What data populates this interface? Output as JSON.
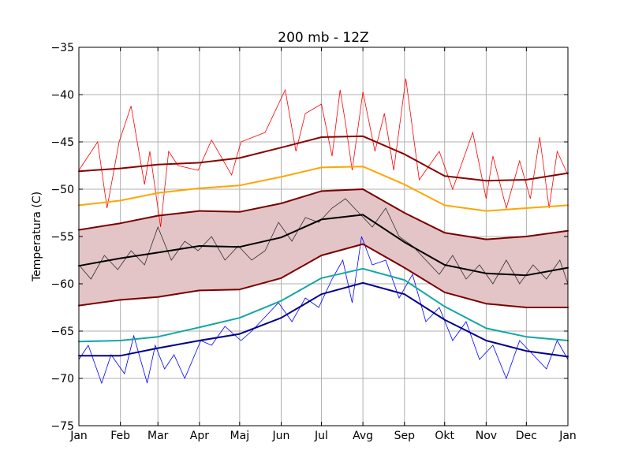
{
  "chart_data": {
    "type": "line",
    "title": "200 mb - 12Z",
    "xlabel": "",
    "ylabel": "Temperatura (C)",
    "ylim": [
      -75,
      -35
    ],
    "yticks": [
      -35,
      -40,
      -45,
      -50,
      -55,
      -60,
      -65,
      -70,
      -75
    ],
    "ytick_labels": [
      "−35",
      "−40",
      "−45",
      "−50",
      "−55",
      "−60",
      "−65",
      "−70",
      "−75"
    ],
    "xticks": [
      "Jan",
      "Feb",
      "Mar",
      "Apr",
      "Maj",
      "Jun",
      "Jul",
      "Avg",
      "Sep",
      "Okt",
      "Nov",
      "Dec",
      "Jan"
    ],
    "x_day_of_year": [
      1,
      32,
      60,
      91,
      121,
      152,
      182,
      213,
      244,
      274,
      305,
      335,
      366
    ],
    "grid": true,
    "colors": {
      "band_fill": "#e3c4c7",
      "band_edge": "#7a0000",
      "record_max_line": "#8b0000",
      "p90_line": "#ffa500",
      "mean_line": "#000000",
      "p10_line": "#13a6a6",
      "record_min_line": "#00008b",
      "daily_max": "#ff0000",
      "daily_mid": "#303030",
      "daily_min": "#0000ff"
    },
    "series": [
      {
        "role": "max_smooth",
        "style": "thick",
        "x": [
          1,
          32,
          60,
          91,
          121,
          152,
          182,
          213,
          244,
          274,
          305,
          335,
          366
        ],
        "values": [
          -48.1,
          -47.8,
          -47.4,
          -47.2,
          -46.7,
          -45.6,
          -44.5,
          -44.4,
          -46.3,
          -48.6,
          -49.1,
          -49.0,
          -48.3
        ]
      },
      {
        "role": "p90_smooth",
        "style": "thick",
        "x": [
          1,
          32,
          60,
          91,
          121,
          152,
          182,
          213,
          244,
          274,
          305,
          335,
          366
        ],
        "values": [
          -51.7,
          -51.2,
          -50.4,
          -49.9,
          -49.6,
          -48.7,
          -47.7,
          -47.6,
          -49.5,
          -51.7,
          -52.3,
          -52.0,
          -51.7
        ]
      },
      {
        "role": "band_upper",
        "style": "thick",
        "x": [
          1,
          32,
          60,
          91,
          121,
          152,
          182,
          213,
          244,
          274,
          305,
          335,
          366
        ],
        "values": [
          -54.3,
          -53.6,
          -52.8,
          -52.3,
          -52.4,
          -51.5,
          -50.2,
          -50.0,
          -52.5,
          -54.6,
          -55.3,
          -55.0,
          -54.4
        ]
      },
      {
        "role": "mean_smooth",
        "style": "thick",
        "x": [
          1,
          32,
          60,
          91,
          121,
          152,
          182,
          213,
          244,
          274,
          305,
          335,
          366
        ],
        "values": [
          -58.1,
          -57.3,
          -56.7,
          -56.0,
          -56.1,
          -55.1,
          -53.2,
          -52.7,
          -55.6,
          -58.0,
          -58.9,
          -59.1,
          -58.3
        ]
      },
      {
        "role": "band_lower",
        "style": "thick",
        "x": [
          1,
          32,
          60,
          91,
          121,
          152,
          182,
          213,
          244,
          274,
          305,
          335,
          366
        ],
        "values": [
          -62.3,
          -61.7,
          -61.4,
          -60.7,
          -60.6,
          -59.4,
          -57.0,
          -55.8,
          -58.3,
          -60.9,
          -62.1,
          -62.5,
          -62.5
        ]
      },
      {
        "role": "p10_smooth",
        "style": "thick",
        "x": [
          1,
          32,
          60,
          91,
          121,
          152,
          182,
          213,
          244,
          274,
          305,
          335,
          366
        ],
        "values": [
          -66.1,
          -66.0,
          -65.6,
          -64.6,
          -63.6,
          -61.8,
          -59.4,
          -58.4,
          -59.6,
          -62.4,
          -64.7,
          -65.6,
          -66.0
        ]
      },
      {
        "role": "min_smooth",
        "style": "thick",
        "x": [
          1,
          32,
          60,
          91,
          121,
          152,
          182,
          213,
          244,
          274,
          305,
          335,
          366
        ],
        "values": [
          -67.6,
          -67.6,
          -66.8,
          -66.0,
          -65.3,
          -63.6,
          -61.1,
          -59.9,
          -61.1,
          -63.8,
          -66.0,
          -67.1,
          -67.7
        ]
      },
      {
        "role": "daily_max",
        "style": "thin",
        "x": [
          1,
          15,
          22,
          31,
          40,
          50,
          54,
          62,
          68,
          75,
          90,
          100,
          115,
          122,
          140,
          155,
          163,
          170,
          182,
          190,
          196,
          200,
          205,
          213,
          222,
          229,
          236,
          245,
          255,
          270,
          280,
          295,
          305,
          310,
          320,
          330,
          338,
          345,
          352,
          358,
          366
        ],
        "values": [
          -48.0,
          -45.0,
          -52.0,
          -45.0,
          -41.2,
          -49.5,
          -46.0,
          -54.0,
          -46.0,
          -47.5,
          -48.0,
          -44.8,
          -48.5,
          -45.0,
          -44.0,
          -39.5,
          -46.0,
          -42.0,
          -41.0,
          -46.5,
          -39.5,
          -43.0,
          -48.0,
          -39.7,
          -46.0,
          -42.0,
          -48.0,
          -38.3,
          -49.0,
          -46.0,
          -50.0,
          -44.0,
          -51.0,
          -46.5,
          -52.0,
          -47.0,
          -51.0,
          -44.5,
          -52.0,
          -46.0,
          -48.5
        ]
      },
      {
        "role": "daily_mid",
        "style": "thin",
        "x": [
          1,
          10,
          20,
          30,
          40,
          50,
          60,
          70,
          80,
          90,
          100,
          110,
          120,
          130,
          140,
          150,
          160,
          170,
          180,
          190,
          200,
          210,
          220,
          230,
          240,
          250,
          260,
          270,
          280,
          290,
          300,
          310,
          320,
          330,
          340,
          350,
          360,
          366
        ],
        "values": [
          -58.0,
          -59.5,
          -57.0,
          -58.5,
          -56.5,
          -58.0,
          -54.0,
          -57.5,
          -55.5,
          -56.5,
          -55.0,
          -57.5,
          -56.0,
          -57.5,
          -56.5,
          -53.5,
          -55.5,
          -53.0,
          -53.5,
          -52.0,
          -51.0,
          -52.5,
          -54.0,
          -52.0,
          -55.0,
          -56.0,
          -57.5,
          -59.0,
          -57.0,
          -59.5,
          -58.0,
          -60.0,
          -57.5,
          -60.0,
          -58.0,
          -59.5,
          -57.5,
          -60.0
        ]
      },
      {
        "role": "daily_min",
        "style": "thin",
        "x": [
          1,
          8,
          18,
          25,
          35,
          42,
          52,
          58,
          65,
          72,
          80,
          92,
          100,
          110,
          122,
          130,
          140,
          150,
          160,
          170,
          180,
          190,
          198,
          205,
          212,
          220,
          230,
          240,
          250,
          260,
          270,
          280,
          290,
          300,
          310,
          320,
          330,
          340,
          350,
          358,
          366
        ],
        "values": [
          -68.0,
          -66.5,
          -70.5,
          -67.5,
          -69.5,
          -65.5,
          -70.5,
          -66.5,
          -69.0,
          -67.5,
          -70.0,
          -66.0,
          -66.5,
          -64.5,
          -66.0,
          -65.0,
          -63.5,
          -62.0,
          -64.0,
          -61.5,
          -62.5,
          -59.5,
          -57.5,
          -62.0,
          -55.0,
          -58.0,
          -57.5,
          -61.5,
          -59.0,
          -64.0,
          -62.5,
          -66.0,
          -64.0,
          -68.0,
          -66.5,
          -70.0,
          -66.0,
          -67.5,
          -69.0,
          -66.0,
          -68.0
        ]
      }
    ]
  }
}
